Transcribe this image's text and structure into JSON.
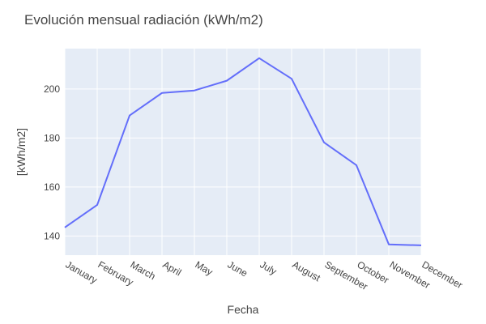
{
  "chart_data": {
    "type": "line",
    "title": "Evolución mensual radiación (kWh/m2)",
    "xlabel": "Fecha",
    "ylabel": "[kWh/m2]",
    "categories": [
      "January",
      "February",
      "March",
      "April",
      "May",
      "June",
      "July",
      "August",
      "September",
      "October",
      "November",
      "December"
    ],
    "series": [
      {
        "values": [
          143.5,
          152.7,
          189.2,
          198.4,
          199.4,
          203.4,
          212.6,
          204.2,
          178.2,
          168.9,
          136.6,
          136.2
        ]
      }
    ],
    "ylim": [
      132.2,
      216.5
    ],
    "yticks": [
      140,
      160,
      180,
      200
    ],
    "grid": true,
    "legend": "none",
    "colors": {
      "line": "#636efa",
      "plot_bg": "#e5ecf6",
      "grid": "#ffffff",
      "text": "#444444"
    }
  }
}
